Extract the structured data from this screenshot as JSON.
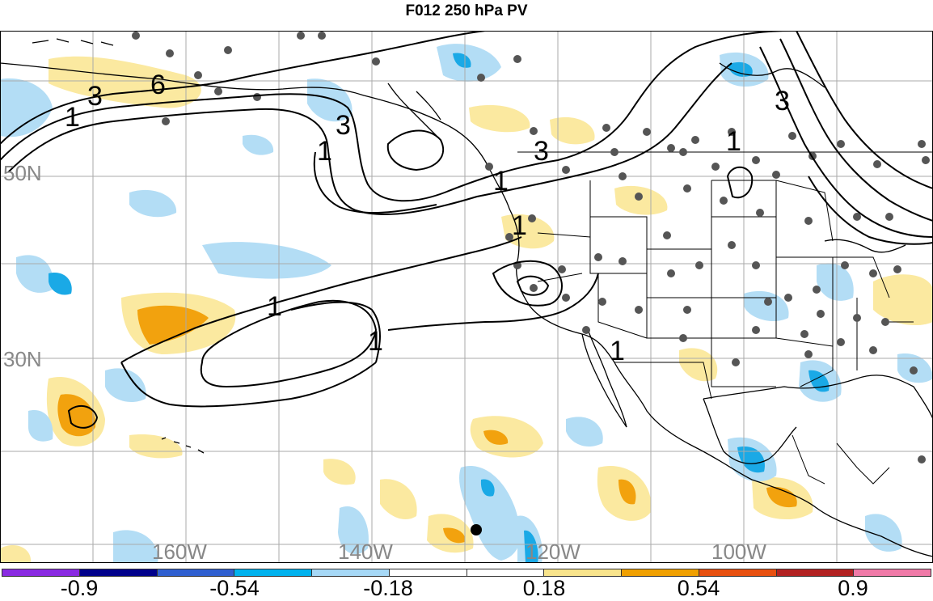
{
  "title": "F012 250 hPa PV",
  "latitude_labels": [
    "50N",
    "30N"
  ],
  "longitude_labels": [
    "160W",
    "140W",
    "120W",
    "100W"
  ],
  "contour_labels": [
    "1",
    "3",
    "6",
    "1",
    "3",
    "1",
    "3",
    "1",
    "1",
    "1",
    "3",
    "1",
    "1"
  ],
  "colorbar": {
    "tick_labels": [
      "-0.9",
      "-0.54",
      "-0.18",
      "0.18",
      "0.54",
      "0.9"
    ],
    "colors": [
      "#8a2be2",
      "#00008b",
      "#2f5fd0",
      "#00b2ee",
      "#a6d8f6",
      "#ffffff",
      "#ffffff",
      "#f8e48c",
      "#f0a000",
      "#e85010",
      "#b22222",
      "#f07aa8"
    ]
  },
  "colors": {
    "positive_light": "#fbe9a0",
    "positive_mid": "#f2a20e",
    "negative_light": "#b3ddf5",
    "negative_mid": "#1aa9e6",
    "gridline": "#aaaaaa",
    "coastline": "#000000",
    "station_dot": "#555555"
  }
}
